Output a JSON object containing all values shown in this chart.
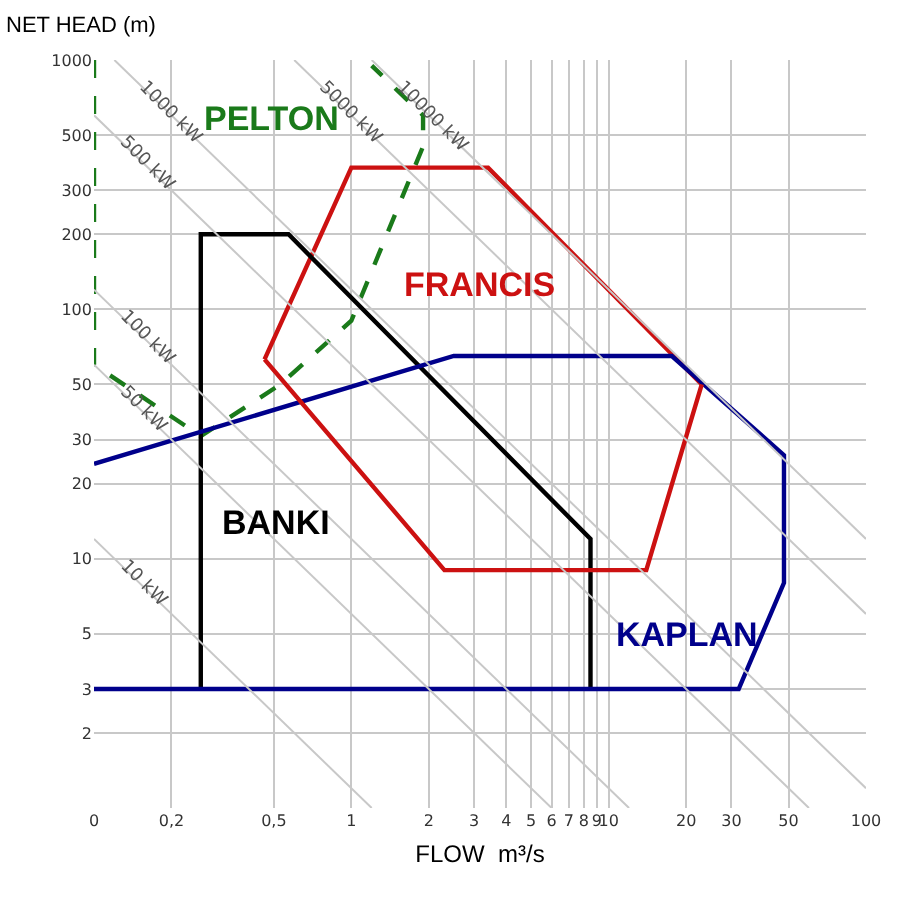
{
  "chart_data": {
    "type": "line",
    "xlabel": "FLOW  m³/s",
    "ylabel": "NET HEAD (m)",
    "log": "xy",
    "grid": true,
    "legend": false,
    "xlim": [
      0.1,
      100
    ],
    "ylim": [
      1,
      1000
    ],
    "xticks": [
      {
        "value": 0.1,
        "label": "0"
      },
      {
        "value": 0.2,
        "label": "0,2"
      },
      {
        "value": 0.5,
        "label": "0,5"
      },
      1,
      2,
      3,
      4,
      5,
      6,
      7,
      8,
      9,
      10,
      20,
      30,
      50,
      100
    ],
    "yticks": [
      2,
      3,
      5,
      10,
      20,
      30,
      50,
      100,
      200,
      300,
      500,
      1000
    ],
    "series": [
      {
        "color": "#1a7a1a",
        "line_style": "dashed",
        "x": [
          0.1,
          0.1,
          0.26,
          0.53,
          1,
          1.9,
          1.9,
          1.2
        ],
        "values": [
          1000,
          60,
          31,
          50,
          90,
          450,
          600,
          950
        ]
      },
      {
        "color": "#cc1111",
        "line_style": "solid",
        "x": [
          0.46,
          1,
          3.4,
          23
        ],
        "values": [
          63,
          370,
          370,
          50
        ]
      },
      {
        "color": "#000000",
        "line_style": "solid",
        "x": [
          0.26,
          0.26,
          0.57,
          8.5,
          8.5
        ],
        "values": [
          3,
          200,
          200,
          12,
          3
        ]
      },
      {
        "color": "#00008b",
        "line_style": "solid",
        "x": [
          0.1,
          2.5,
          17.6,
          48,
          48,
          32,
          0.1
        ],
        "values": [
          24,
          65,
          65,
          26,
          8,
          3,
          3
        ]
      },
      {
        "color": "#cc1111",
        "line_style": "solid",
        "x": [
          23,
          14,
          2.3,
          0.46
        ],
        "values": [
          50,
          9,
          9,
          63
        ]
      },
      {
        "name": "10 kW",
        "color": "#c8c8c8",
        "line_style": "solid",
        "x": [
          0.1,
          1.2
        ],
        "values": [
          12,
          1
        ]
      },
      {
        "name": "50 kW",
        "color": "#c8c8c8",
        "line_style": "solid",
        "x": [
          0.1,
          6
        ],
        "values": [
          60,
          1
        ]
      },
      {
        "name": "100 kW",
        "color": "#c8c8c8",
        "line_style": "solid",
        "x": [
          0.1,
          12
        ],
        "values": [
          120,
          1
        ]
      },
      {
        "name": "500 kW",
        "color": "#c8c8c8",
        "line_style": "solid",
        "x": [
          0.1,
          60
        ],
        "values": [
          600,
          1
        ]
      },
      {
        "name": "1000 kW",
        "color": "#c8c8c8",
        "line_style": "solid",
        "x": [
          0.12,
          100
        ],
        "values": [
          1000,
          1.2
        ]
      },
      {
        "name": "5000 kW",
        "color": "#c8c8c8",
        "line_style": "solid",
        "x": [
          0.6,
          100
        ],
        "values": [
          1000,
          6
        ]
      },
      {
        "name": "10000 kW",
        "color": "#c8c8c8",
        "line_style": "solid",
        "x": [
          1.2,
          100
        ],
        "values": [
          1000,
          12
        ]
      }
    ],
    "annotations": [
      "PELTON",
      "FRANCIS",
      "BANKI",
      "KAPLAN"
    ]
  }
}
